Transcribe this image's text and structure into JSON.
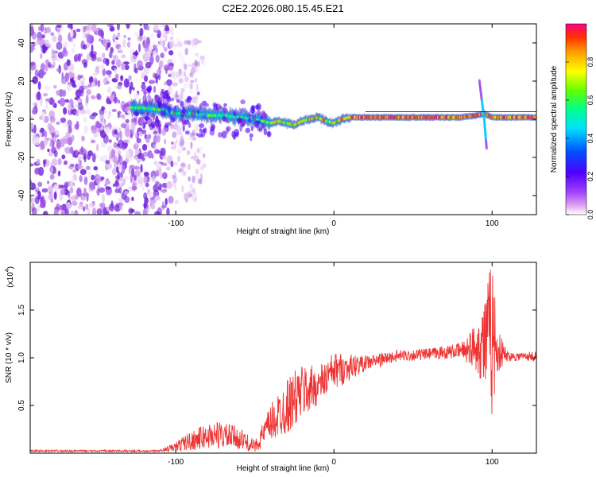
{
  "title": "C2E2.2026.080.15.45.E21",
  "chart_data": [
    {
      "type": "heatmap",
      "xlabel": "Height of straight line (km)",
      "ylabel": "Frequency (Hz)",
      "xlim": [
        -192,
        128
      ],
      "ylim": [
        -50,
        50
      ],
      "xticks": [
        -100,
        0,
        100
      ],
      "yticks": [
        -40,
        -20,
        0,
        20,
        40
      ],
      "colorbar": {
        "label": "Normalized spectral amplitude",
        "range": [
          0,
          1
        ],
        "ticks": [
          0.0,
          0.2,
          0.4,
          0.6,
          0.8
        ],
        "tick_labels": [
          "0.0",
          "0.2",
          "0.4",
          "0.6",
          "0.8"
        ]
      },
      "ridge": [
        {
          "x": -120,
          "y": 6
        },
        {
          "x": -110,
          "y": 5
        },
        {
          "x": -100,
          "y": 3
        },
        {
          "x": -90,
          "y": 3
        },
        {
          "x": -80,
          "y": 2
        },
        {
          "x": -70,
          "y": 2
        },
        {
          "x": -60,
          "y": 1
        },
        {
          "x": -50,
          "y": 0
        },
        {
          "x": -45,
          "y": -1
        },
        {
          "x": -40,
          "y": -2
        },
        {
          "x": -35,
          "y": -1
        },
        {
          "x": -30,
          "y": -2
        },
        {
          "x": -25,
          "y": -3
        },
        {
          "x": -20,
          "y": -1
        },
        {
          "x": -15,
          "y": 0
        },
        {
          "x": -10,
          "y": 1
        },
        {
          "x": -5,
          "y": -1
        },
        {
          "x": 0,
          "y": -2
        },
        {
          "x": 5,
          "y": 0
        },
        {
          "x": 10,
          "y": 1
        },
        {
          "x": 20,
          "y": 1
        },
        {
          "x": 40,
          "y": 1
        },
        {
          "x": 60,
          "y": 1
        },
        {
          "x": 80,
          "y": 1
        },
        {
          "x": 90,
          "y": 2
        },
        {
          "x": 95,
          "y": 3
        },
        {
          "x": 100,
          "y": 1
        },
        {
          "x": 110,
          "y": 1
        },
        {
          "x": 128,
          "y": 1
        }
      ],
      "spike_x": 95,
      "spike_range": [
        -15,
        20
      ]
    },
    {
      "type": "line",
      "xlabel": "Height of straight line (km)",
      "ylabel": "SNR (10 * v/v)",
      "y_multiplier": "(x10",
      "y_multiplier_exp": "4",
      "xlim": [
        -192,
        128
      ],
      "ylim": [
        0,
        2.0
      ],
      "xticks": [
        -100,
        0,
        100
      ],
      "yticks": [
        0.5,
        1.0,
        1.5
      ],
      "ytick_labels": [
        "0.5",
        "1.0",
        "1.5"
      ],
      "series_color": "#ee3333",
      "envelope": [
        {
          "x": -192,
          "base": 0.02,
          "amp": 0.01
        },
        {
          "x": -110,
          "base": 0.02,
          "amp": 0.01
        },
        {
          "x": -100,
          "base": 0.05,
          "amp": 0.05
        },
        {
          "x": -95,
          "base": 0.08,
          "amp": 0.08
        },
        {
          "x": -85,
          "base": 0.12,
          "amp": 0.12
        },
        {
          "x": -75,
          "base": 0.15,
          "amp": 0.15
        },
        {
          "x": -60,
          "base": 0.12,
          "amp": 0.12
        },
        {
          "x": -50,
          "base": 0.05,
          "amp": 0.06
        },
        {
          "x": -40,
          "base": 0.25,
          "amp": 0.2
        },
        {
          "x": -30,
          "base": 0.4,
          "amp": 0.3
        },
        {
          "x": -20,
          "base": 0.55,
          "amp": 0.3
        },
        {
          "x": -10,
          "base": 0.65,
          "amp": 0.2
        },
        {
          "x": 0,
          "base": 0.8,
          "amp": 0.2
        },
        {
          "x": 20,
          "base": 0.92,
          "amp": 0.08
        },
        {
          "x": 40,
          "base": 1.0,
          "amp": 0.06
        },
        {
          "x": 60,
          "base": 1.02,
          "amp": 0.06
        },
        {
          "x": 80,
          "base": 1.05,
          "amp": 0.08
        },
        {
          "x": 90,
          "base": 1.05,
          "amp": 0.25
        },
        {
          "x": 97,
          "base": 1.0,
          "amp": 0.6
        },
        {
          "x": 100,
          "base": 1.0,
          "amp": 0.9
        },
        {
          "x": 103,
          "base": 1.0,
          "amp": 0.25
        },
        {
          "x": 110,
          "base": 1.0,
          "amp": 0.05
        },
        {
          "x": 128,
          "base": 1.0,
          "amp": 0.05
        }
      ]
    }
  ]
}
